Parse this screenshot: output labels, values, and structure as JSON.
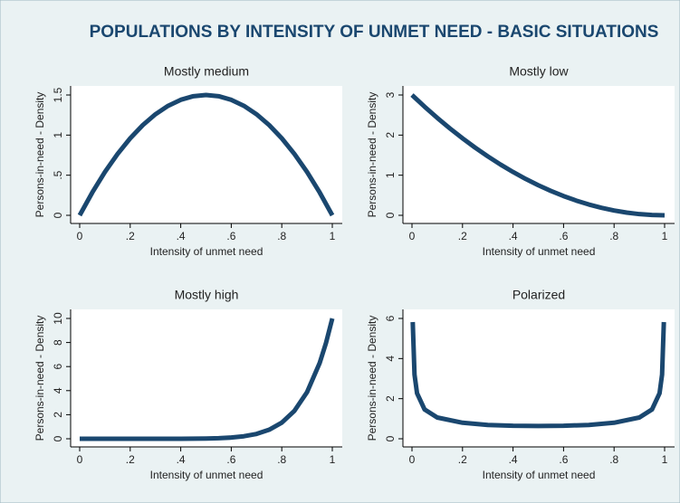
{
  "title": "POPULATIONS BY INTENSITY OF UNMET NEED - BASIC SITUATIONS",
  "chart_data": [
    {
      "type": "line",
      "title": "Mostly medium",
      "xlabel": "Intensity of unmet need",
      "ylabel": "Persons-in-need - Density",
      "x": [
        0,
        0.05,
        0.1,
        0.15,
        0.2,
        0.25,
        0.3,
        0.35,
        0.4,
        0.45,
        0.5,
        0.55,
        0.6,
        0.65,
        0.7,
        0.75,
        0.8,
        0.85,
        0.9,
        0.95,
        1
      ],
      "values": [
        0,
        0.285,
        0.54,
        0.765,
        0.96,
        1.125,
        1.26,
        1.365,
        1.44,
        1.485,
        1.5,
        1.485,
        1.44,
        1.365,
        1.26,
        1.125,
        0.96,
        0.765,
        0.54,
        0.285,
        0
      ],
      "color": "#1a476f",
      "xlim": [
        0,
        1
      ],
      "ylim": [
        0,
        1.5
      ],
      "xticks": [
        0,
        {
          "value": 0.2,
          "label": ".2"
        },
        {
          "value": 0.4,
          "label": ".4"
        },
        {
          "value": 0.6,
          "label": ".6"
        },
        {
          "value": 0.8,
          "label": ".8"
        },
        1
      ],
      "yticks": [
        0,
        {
          "value": 0.5,
          "label": ".5"
        },
        1,
        1.5
      ]
    },
    {
      "type": "line",
      "title": "Mostly low",
      "xlabel": "Intensity of unmet need",
      "ylabel": "Persons-in-need - Density",
      "x": [
        0,
        0.05,
        0.1,
        0.15,
        0.2,
        0.25,
        0.3,
        0.35,
        0.4,
        0.45,
        0.5,
        0.55,
        0.6,
        0.65,
        0.7,
        0.75,
        0.8,
        0.85,
        0.9,
        0.95,
        1
      ],
      "values": [
        3,
        2.7075,
        2.43,
        2.1675,
        1.92,
        1.6875,
        1.47,
        1.2675,
        1.08,
        0.9075,
        0.75,
        0.6075,
        0.48,
        0.3675,
        0.27,
        0.1875,
        0.12,
        0.0675,
        0.03,
        0.0075,
        0
      ],
      "color": "#1a476f",
      "xlim": [
        0,
        1
      ],
      "ylim": [
        0,
        3
      ],
      "xticks": [
        0,
        {
          "value": 0.2,
          "label": ".2"
        },
        {
          "value": 0.4,
          "label": ".4"
        },
        {
          "value": 0.6,
          "label": ".6"
        },
        {
          "value": 0.8,
          "label": ".8"
        },
        1
      ],
      "yticks": [
        0,
        1,
        2,
        3
      ]
    },
    {
      "type": "line",
      "title": "Mostly high",
      "xlabel": "Intensity of unmet need",
      "ylabel": "Persons-in-need - Density",
      "x": [
        0,
        0.1,
        0.2,
        0.3,
        0.4,
        0.45,
        0.5,
        0.55,
        0.6,
        0.65,
        0.7,
        0.75,
        0.8,
        0.85,
        0.9,
        0.95,
        0.975,
        1
      ],
      "values": [
        0,
        0,
        0,
        0,
        0,
        0.01,
        0.02,
        0.046,
        0.1,
        0.21,
        0.4,
        0.75,
        1.34,
        2.32,
        3.87,
        6.3,
        7.96,
        10
      ],
      "color": "#1a476f",
      "xlim": [
        0,
        1
      ],
      "ylim": [
        0,
        10
      ],
      "xticks": [
        0,
        {
          "value": 0.2,
          "label": ".2"
        },
        {
          "value": 0.4,
          "label": ".4"
        },
        {
          "value": 0.6,
          "label": ".6"
        },
        {
          "value": 0.8,
          "label": ".8"
        },
        1
      ],
      "yticks": [
        0,
        2,
        4,
        6,
        8,
        10
      ]
    },
    {
      "type": "line",
      "title": "Polarized",
      "xlabel": "Intensity of unmet need",
      "ylabel": "Persons-in-need - Density",
      "x": [
        0.003,
        0.01,
        0.02,
        0.05,
        0.1,
        0.2,
        0.3,
        0.4,
        0.5,
        0.6,
        0.7,
        0.8,
        0.9,
        0.95,
        0.98,
        0.99,
        0.997
      ],
      "values": [
        5.82,
        3.2,
        2.27,
        1.46,
        1.06,
        0.8,
        0.69,
        0.65,
        0.64,
        0.65,
        0.69,
        0.8,
        1.06,
        1.46,
        2.27,
        3.2,
        5.82
      ],
      "color": "#1a476f",
      "xlim": [
        0,
        1
      ],
      "ylim": [
        0,
        6
      ],
      "xticks": [
        0,
        {
          "value": 0.2,
          "label": ".2"
        },
        {
          "value": 0.4,
          "label": ".4"
        },
        {
          "value": 0.6,
          "label": ".6"
        },
        {
          "value": 0.8,
          "label": ".8"
        },
        1
      ],
      "yticks": [
        0,
        2,
        4,
        6
      ]
    }
  ]
}
